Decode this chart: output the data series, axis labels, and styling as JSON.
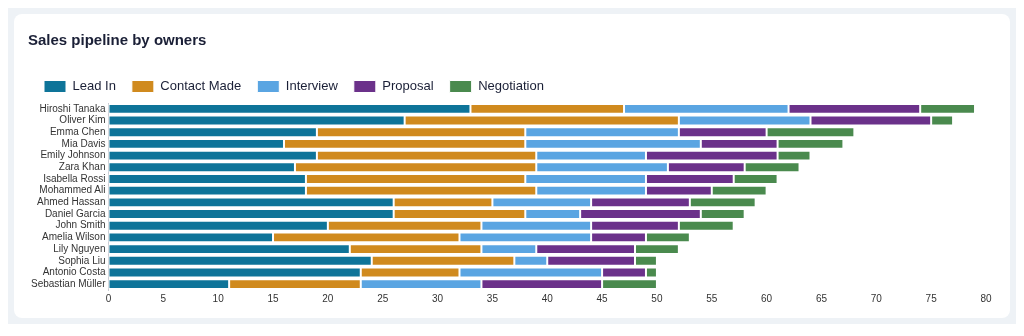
{
  "chart_data": {
    "type": "bar",
    "title": "Sales pipeline by owners",
    "orientation": "horizontal",
    "stacked": true,
    "categories": [
      "Hiroshi Tanaka",
      "Oliver Kim",
      "Emma Chen",
      "Mia Davis",
      "Emily Johnson",
      "Zara Khan",
      "Isabella Rossi",
      "Mohammed Ali",
      "Ahmed Hassan",
      "Daniel Garcia",
      "John Smith",
      "Amelia Wilson",
      "Lily Nguyen",
      "Sophia Liu",
      "Antonio Costa",
      "Sebastian Müller"
    ],
    "series": [
      {
        "name": "Lead In",
        "color": "#0e7499",
        "values": [
          33,
          27,
          19,
          16,
          19,
          17,
          18,
          18,
          26,
          26,
          20,
          15,
          22,
          24,
          23,
          11
        ]
      },
      {
        "name": "Contact Made",
        "color": "#d08a1e",
        "values": [
          14,
          25,
          19,
          22,
          20,
          22,
          20,
          21,
          9,
          12,
          14,
          17,
          12,
          13,
          9,
          12
        ]
      },
      {
        "name": "Interview",
        "color": "#5aa5e2",
        "values": [
          15,
          12,
          14,
          16,
          10,
          12,
          11,
          10,
          9,
          5,
          10,
          12,
          5,
          3,
          13,
          11
        ]
      },
      {
        "name": "Proposal",
        "color": "#6b318a",
        "values": [
          12,
          11,
          8,
          7,
          12,
          7,
          8,
          6,
          9,
          11,
          8,
          5,
          9,
          8,
          4,
          11
        ]
      },
      {
        "name": "Negotiation",
        "color": "#4a8a4e",
        "values": [
          5,
          2,
          8,
          6,
          3,
          5,
          4,
          5,
          6,
          4,
          5,
          4,
          4,
          2,
          1,
          5
        ]
      }
    ],
    "xlim": [
      0,
      80
    ],
    "xticks": [
      0,
      5,
      10,
      15,
      20,
      25,
      30,
      35,
      40,
      45,
      50,
      55,
      60,
      65,
      70,
      75,
      80
    ],
    "grid": false,
    "legend": "top left"
  }
}
